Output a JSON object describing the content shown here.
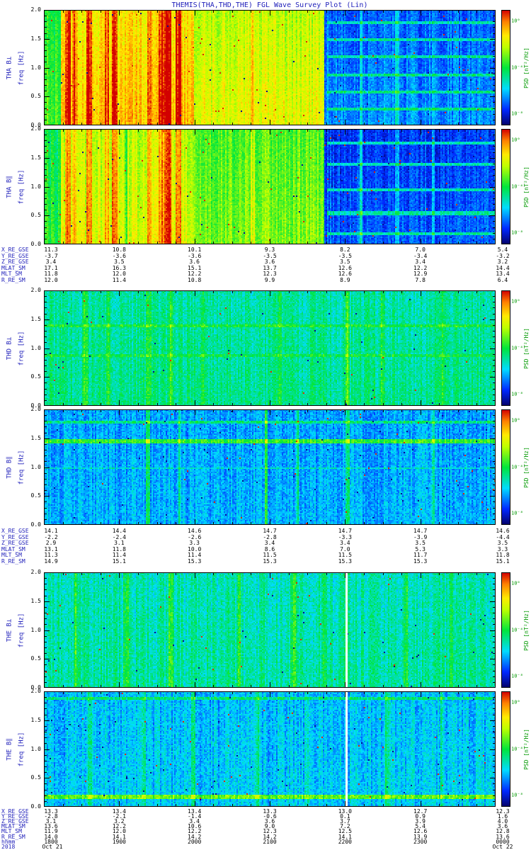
{
  "title": "THEMIS(THA,THD,THE) FGL Wave Survey Plot (Lin)",
  "colors": {
    "label_blue": "#2222bb",
    "value_black": "#000000",
    "colorbar_green": "#009900",
    "background": "#ffffff"
  },
  "chart_data": {
    "type": "heatmap",
    "description": "Six wave-power spectrogram panels (perpendicular and parallel magnetic PSD from FGL) for THEMIS probes THA, THD and THE, frequency 0-2 Hz versus time 18:00 UT Oct 21 2018 to 00:00 UT Oct 22 2018, rainbow color scale with log PSD colorbar.",
    "ylabel": "freq [Hz]",
    "ylim": [
      0,
      2
    ],
    "yticks": [
      "2.0",
      "1.5",
      "1.0",
      "0.5",
      "0.0"
    ],
    "colorbar": {
      "label": "PSD [nT²/Hz]",
      "scale": "log",
      "ticks": [
        {
          "label": "10⁰",
          "pos": 0.1
        },
        {
          "label": "10⁻⁴",
          "pos": 0.5
        },
        {
          "label": "10⁻⁸",
          "pos": 0.9
        }
      ]
    },
    "time_axis": {
      "label": "hhmm",
      "ticks": [
        "1800",
        "1900",
        "2000",
        "2100",
        "2200",
        "2300",
        "0000"
      ],
      "year": "2018",
      "start_date": "Oct 21",
      "end_date": "Oct 22"
    },
    "groups": [
      {
        "sc": "THA",
        "panels": [
          {
            "label": "THA B⊥",
            "component": "B-perpendicular",
            "seed": 11,
            "profile": {
              "base": [
                {
                  "x0": 0,
                  "x1": 0.035,
                  "v": 0.55
                },
                {
                  "x0": 0.035,
                  "x1": 0.33,
                  "v": 0.8
                },
                {
                  "x0": 0.33,
                  "x1": 0.62,
                  "v": 0.71
                },
                {
                  "x0": 0.62,
                  "x1": 1,
                  "v": 0.22
                }
              ],
              "noise": 0.1,
              "colnoise": 0.12,
              "ygrad": 0.06,
              "speckle_hi": 0.003,
              "speckle_lo": 0.002,
              "streaks": [
                {
                  "x": 0.052,
                  "w": 0.006,
                  "dv": 0.18
                },
                {
                  "x": 0.067,
                  "w": 0.005,
                  "dv": 0.14
                },
                {
                  "x": 0.1,
                  "w": 0.006,
                  "dv": 0.2
                },
                {
                  "x": 0.138,
                  "w": 0.005,
                  "dv": 0.14
                },
                {
                  "x": 0.156,
                  "w": 0.006,
                  "dv": 0.18
                },
                {
                  "x": 0.232,
                  "w": 0.005,
                  "dv": 0.14
                },
                {
                  "x": 0.258,
                  "w": 0.006,
                  "dv": 0.18
                },
                {
                  "x": 0.273,
                  "w": 0.009,
                  "dv": 0.24
                },
                {
                  "x": 0.296,
                  "w": 0.006,
                  "dv": 0.2
                },
                {
                  "x": 0.46,
                  "w": 0.004,
                  "dv": 0.1
                },
                {
                  "x": 0.7,
                  "w": 0.004,
                  "dv": 0.14
                },
                {
                  "x": 0.78,
                  "w": 0.004,
                  "dv": 0.13
                },
                {
                  "x": 0.86,
                  "w": 0.003,
                  "dv": 0.11
                }
              ],
              "bands": [
                {
                  "y": 0.1,
                  "h": 0.013,
                  "dv": 0.2,
                  "x0": 0.625
                },
                {
                  "y": 0.25,
                  "h": 0.013,
                  "dv": 0.2,
                  "x0": 0.625
                },
                {
                  "y": 0.4,
                  "h": 0.013,
                  "dv": 0.2,
                  "x0": 0.625
                },
                {
                  "y": 0.55,
                  "h": 0.013,
                  "dv": 0.2,
                  "x0": 0.625
                },
                {
                  "y": 0.7,
                  "h": 0.013,
                  "dv": 0.2,
                  "x0": 0.625
                },
                {
                  "y": 0.85,
                  "h": 0.013,
                  "dv": 0.2,
                  "x0": 0.625
                }
              ],
              "gaps": []
            }
          },
          {
            "label": "THA B∥",
            "component": "B-parallel",
            "seed": 12,
            "profile": {
              "base": [
                {
                  "x0": 0,
                  "x1": 0.035,
                  "v": 0.5
                },
                {
                  "x0": 0.035,
                  "x1": 0.33,
                  "v": 0.7
                },
                {
                  "x0": 0.33,
                  "x1": 0.62,
                  "v": 0.6
                },
                {
                  "x0": 0.62,
                  "x1": 1,
                  "v": 0.17
                }
              ],
              "noise": 0.1,
              "colnoise": 0.12,
              "ygrad": 0.05,
              "speckle_hi": 0.003,
              "speckle_lo": 0.002,
              "streaks": [
                {
                  "x": 0.052,
                  "w": 0.006,
                  "dv": 0.18
                },
                {
                  "x": 0.067,
                  "w": 0.005,
                  "dv": 0.14
                },
                {
                  "x": 0.1,
                  "w": 0.006,
                  "dv": 0.2
                },
                {
                  "x": 0.138,
                  "w": 0.005,
                  "dv": 0.14
                },
                {
                  "x": 0.156,
                  "w": 0.006,
                  "dv": 0.18
                },
                {
                  "x": 0.18,
                  "w": 0.004,
                  "dv": -0.15
                },
                {
                  "x": 0.232,
                  "w": 0.005,
                  "dv": 0.14
                },
                {
                  "x": 0.258,
                  "w": 0.006,
                  "dv": 0.18
                },
                {
                  "x": 0.273,
                  "w": 0.009,
                  "dv": 0.24
                },
                {
                  "x": 0.296,
                  "w": 0.006,
                  "dv": 0.2
                },
                {
                  "x": 0.46,
                  "w": 0.004,
                  "dv": 0.1
                },
                {
                  "x": 0.7,
                  "w": 0.004,
                  "dv": 0.14
                },
                {
                  "x": 0.78,
                  "w": 0.004,
                  "dv": 0.13
                },
                {
                  "x": 0.86,
                  "w": 0.003,
                  "dv": 0.11
                }
              ],
              "bands": [
                {
                  "y": 0.12,
                  "h": 0.013,
                  "dv": 0.22,
                  "x0": 0.625
                },
                {
                  "y": 0.3,
                  "h": 0.013,
                  "dv": 0.22,
                  "x0": 0.625
                },
                {
                  "y": 0.52,
                  "h": 0.013,
                  "dv": 0.22,
                  "x0": 0.625
                },
                {
                  "y": 0.72,
                  "h": 0.013,
                  "dv": 0.22,
                  "x0": 0.625
                },
                {
                  "y": 0.9,
                  "h": 0.013,
                  "dv": 0.22,
                  "x0": 0.625
                }
              ],
              "gaps": []
            }
          }
        ],
        "ephemeris": {
          "labels": [
            "X_RE_GSE",
            "Y_RE_GSE",
            "Z_RE_GSE",
            "MLAT_SM",
            "MLT_SM",
            "R_RE_SM"
          ],
          "rows": [
            [
              "11.3",
              "10.8",
              "10.1",
              "9.3",
              "8.2",
              "7.0",
              "5.4"
            ],
            [
              "-3.7",
              "-3.6",
              "-3.6",
              "-3.5",
              "-3.5",
              "-3.4",
              "-3.2"
            ],
            [
              "3.4",
              "3.5",
              "3.6",
              "3.6",
              "3.5",
              "3.4",
              "3.2"
            ],
            [
              "17.1",
              "16.3",
              "15.1",
              "13.7",
              "12.6",
              "12.2",
              "14.4"
            ],
            [
              "11.8",
              "12.0",
              "12.2",
              "12.3",
              "12.6",
              "12.9",
              "13.4"
            ],
            [
              "12.0",
              "11.4",
              "10.8",
              "9.9",
              "8.9",
              "7.8",
              "6.4"
            ]
          ]
        }
      },
      {
        "sc": "THD",
        "panels": [
          {
            "label": "THD B⊥",
            "component": "B-perpendicular",
            "seed": 21,
            "profile": {
              "base": [
                {
                  "x0": 0,
                  "x1": 1,
                  "v": 0.42
                }
              ],
              "noise": 0.12,
              "colnoise": 0.1,
              "ygrad": 0.03,
              "speckle_hi": 0.001,
              "speckle_lo": 0.002,
              "streaks": [
                {
                  "x": 0.09,
                  "w": 0.006,
                  "dv": 0.1
                },
                {
                  "x": 0.14,
                  "w": 0.005,
                  "dv": 0.12
                },
                {
                  "x": 0.23,
                  "w": 0.006,
                  "dv": 0.12
                },
                {
                  "x": 0.28,
                  "w": 0.005,
                  "dv": 0.1
                },
                {
                  "x": 0.35,
                  "w": 0.005,
                  "dv": 0.08
                },
                {
                  "x": 0.52,
                  "w": 0.005,
                  "dv": 0.1
                },
                {
                  "x": 0.67,
                  "w": 0.005,
                  "dv": 0.12
                },
                {
                  "x": 0.75,
                  "w": 0.004,
                  "dv": 0.1
                },
                {
                  "x": 0.88,
                  "w": 0.004,
                  "dv": 0.08
                }
              ],
              "bands": [
                {
                  "y": 0.3,
                  "h": 0.012,
                  "dv": 0.1
                },
                {
                  "y": 0.55,
                  "h": 0.012,
                  "dv": 0.08
                }
              ],
              "gaps": []
            }
          },
          {
            "label": "THD B∥",
            "component": "B-parallel",
            "seed": 22,
            "profile": {
              "base": [
                {
                  "x0": 0,
                  "x1": 1,
                  "v": 0.27
                }
              ],
              "noise": 0.12,
              "colnoise": 0.1,
              "ygrad": 0.02,
              "speckle_hi": 0.002,
              "speckle_lo": 0.003,
              "streaks": [
                {
                  "x": 0.23,
                  "w": 0.005,
                  "dv": 0.2
                },
                {
                  "x": 0.3,
                  "w": 0.004,
                  "dv": 0.12
                },
                {
                  "x": 0.49,
                  "w": 0.004,
                  "dv": 0.22
                },
                {
                  "x": 0.56,
                  "w": 0.004,
                  "dv": 0.14
                },
                {
                  "x": 0.67,
                  "w": 0.005,
                  "dv": 0.18
                },
                {
                  "x": 0.86,
                  "w": 0.004,
                  "dv": 0.12
                }
              ],
              "bands": [
                {
                  "y": 0.1,
                  "h": 0.012,
                  "dv": 0.18
                },
                {
                  "y": 0.27,
                  "h": 0.015,
                  "dv": 0.28
                },
                {
                  "y": 0.5,
                  "h": 0.012,
                  "dv": 0.1
                }
              ],
              "gaps": []
            }
          }
        ],
        "ephemeris": {
          "labels": [
            "X_RE_GSE",
            "Y_RE_GSE",
            "Z_RE_GSE",
            "MLAT_SM",
            "MLT_SM",
            "R_RE_SM"
          ],
          "rows": [
            [
              "14.1",
              "14.4",
              "14.6",
              "14.7",
              "14.7",
              "14.7",
              "14.6"
            ],
            [
              "-2.2",
              "-2.4",
              "-2.6",
              "-2.8",
              "-3.3",
              "-3.9",
              "-4.4"
            ],
            [
              "2.9",
              "3.1",
              "3.3",
              "3.4",
              "3.4",
              "3.5",
              "3.5"
            ],
            [
              "13.1",
              "11.8",
              "10.0",
              "8.6",
              "7.0",
              "5.3",
              "3.3"
            ],
            [
              "11.3",
              "11.4",
              "11.4",
              "11.5",
              "11.5",
              "11.7",
              "11.8"
            ],
            [
              "14.9",
              "15.1",
              "15.3",
              "15.3",
              "15.3",
              "15.3",
              "15.1"
            ]
          ]
        }
      },
      {
        "sc": "THE",
        "panels": [
          {
            "label": "THE B⊥",
            "component": "B-perpendicular",
            "seed": 31,
            "profile": {
              "base": [
                {
                  "x0": 0,
                  "x1": 1,
                  "v": 0.4
                }
              ],
              "noise": 0.13,
              "colnoise": 0.11,
              "ygrad": 0.03,
              "speckle_hi": 0.001,
              "speckle_lo": 0.002,
              "streaks": [
                {
                  "x": 0.07,
                  "w": 0.005,
                  "dv": 0.12
                },
                {
                  "x": 0.18,
                  "w": 0.005,
                  "dv": 0.1
                },
                {
                  "x": 0.28,
                  "w": 0.006,
                  "dv": 0.12
                },
                {
                  "x": 0.43,
                  "w": 0.004,
                  "dv": 0.1
                },
                {
                  "x": 0.55,
                  "w": 0.005,
                  "dv": 0.12
                },
                {
                  "x": 0.62,
                  "w": 0.004,
                  "dv": 0.1
                },
                {
                  "x": 0.8,
                  "w": 0.005,
                  "dv": 0.12
                },
                {
                  "x": 0.9,
                  "w": 0.004,
                  "dv": 0.1
                }
              ],
              "bands": [],
              "gaps": [
                0.67
              ]
            }
          },
          {
            "label": "THE B∥",
            "component": "B-parallel",
            "seed": 32,
            "profile": {
              "base": [
                {
                  "x0": 0,
                  "x1": 1,
                  "v": 0.3
                }
              ],
              "noise": 0.13,
              "colnoise": 0.11,
              "ygrad": 0.02,
              "speckle_hi": 0.002,
              "speckle_lo": 0.003,
              "streaks": [
                {
                  "x": 0.1,
                  "w": 0.004,
                  "dv": 0.1
                },
                {
                  "x": 0.22,
                  "w": 0.005,
                  "dv": 0.12
                },
                {
                  "x": 0.33,
                  "w": 0.004,
                  "dv": 0.1
                },
                {
                  "x": 0.47,
                  "w": 0.004,
                  "dv": 0.12
                },
                {
                  "x": 0.58,
                  "w": 0.004,
                  "dv": 0.1
                },
                {
                  "x": 0.76,
                  "w": 0.005,
                  "dv": 0.12
                },
                {
                  "x": 0.88,
                  "w": 0.004,
                  "dv": 0.1
                }
              ],
              "bands": [
                {
                  "y": 0.05,
                  "h": 0.012,
                  "dv": 0.15
                },
                {
                  "y": 0.9,
                  "h": 0.02,
                  "dv": 0.28
                }
              ],
              "gaps": [
                0.67
              ]
            }
          }
        ],
        "ephemeris": {
          "labels": [
            "X_RE_GSE",
            "Y_RE_GSE",
            "Z_RE_GSE",
            "MLAT_SM",
            "MLT_SM",
            "R_RE_SM"
          ],
          "rows": [
            [
              "13.3",
              "13.4",
              "13.4",
              "13.3",
              "13.0",
              "12.7",
              "12.3"
            ],
            [
              "-2.8",
              "-2.1",
              "-1.4",
              "-0.6",
              "0.1",
              "0.9",
              "1.6"
            ],
            [
              "3.1",
              "3.2",
              "3.4",
              "3.6",
              "3.7",
              "3.9",
              "4.0"
            ],
            [
              "13.6",
              "12.2",
              "10.6",
              "9.0",
              "7.2",
              "5.4",
              "3.6"
            ],
            [
              "11.9",
              "12.0",
              "12.2",
              "12.3",
              "12.5",
              "12.6",
              "12.8"
            ],
            [
              "14.0",
              "14.1",
              "14.2",
              "14.2",
              "14.1",
              "13.9",
              "13.6"
            ]
          ]
        }
      }
    ]
  }
}
